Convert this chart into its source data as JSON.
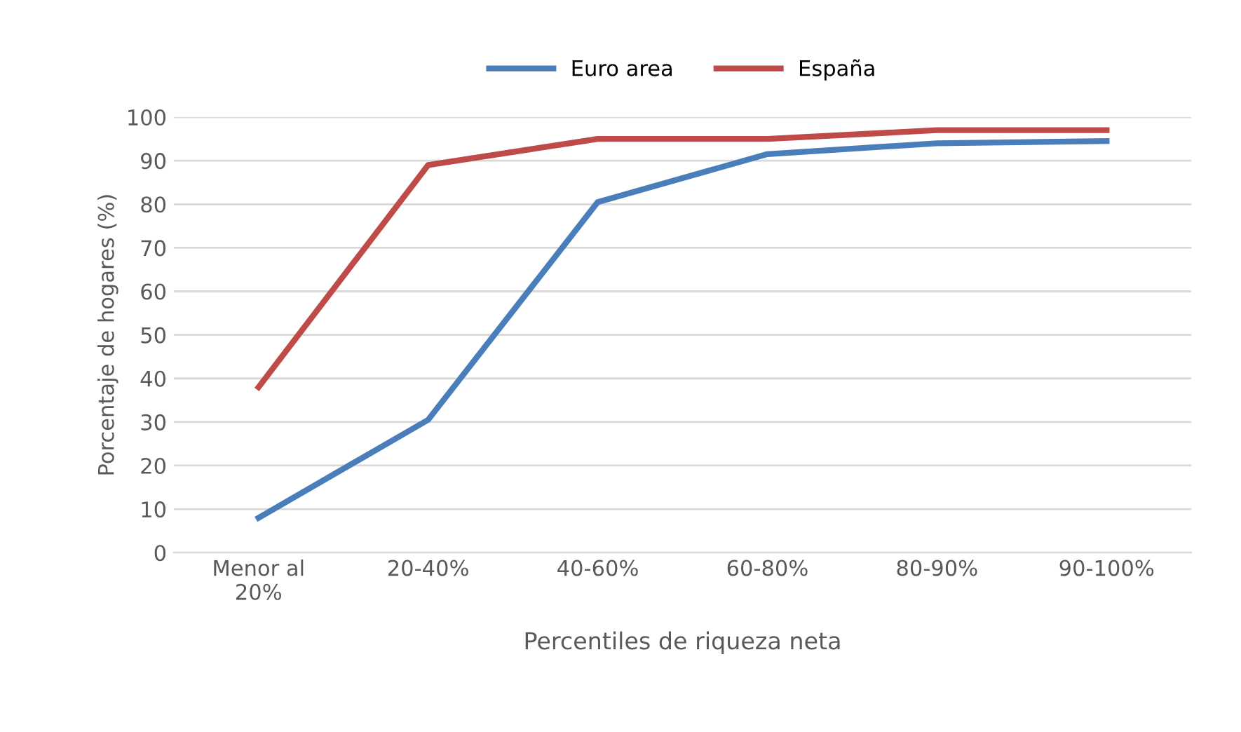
{
  "chart_data": {
    "type": "line",
    "xlabel": "Percentiles de riqueza neta",
    "ylabel": "Porcentaje de hogares (%)",
    "categories": [
      "Menor al\n20%",
      "20-40%",
      "40-60%",
      "60-80%",
      "80-90%",
      "90-100%"
    ],
    "series": [
      {
        "name": "Euro area",
        "color": "#4a7ebb",
        "values": [
          8,
          30.5,
          80.5,
          91.5,
          94,
          94.5
        ]
      },
      {
        "name": "España",
        "color": "#be4b48",
        "values": [
          38,
          89,
          95,
          95,
          97,
          97
        ]
      }
    ],
    "ylim": [
      0,
      100
    ],
    "yticks": [
      0,
      10,
      20,
      30,
      40,
      50,
      60,
      70,
      80,
      90,
      100
    ],
    "grid": "y",
    "legend": "top",
    "marker": "none",
    "line_style": "solid"
  }
}
